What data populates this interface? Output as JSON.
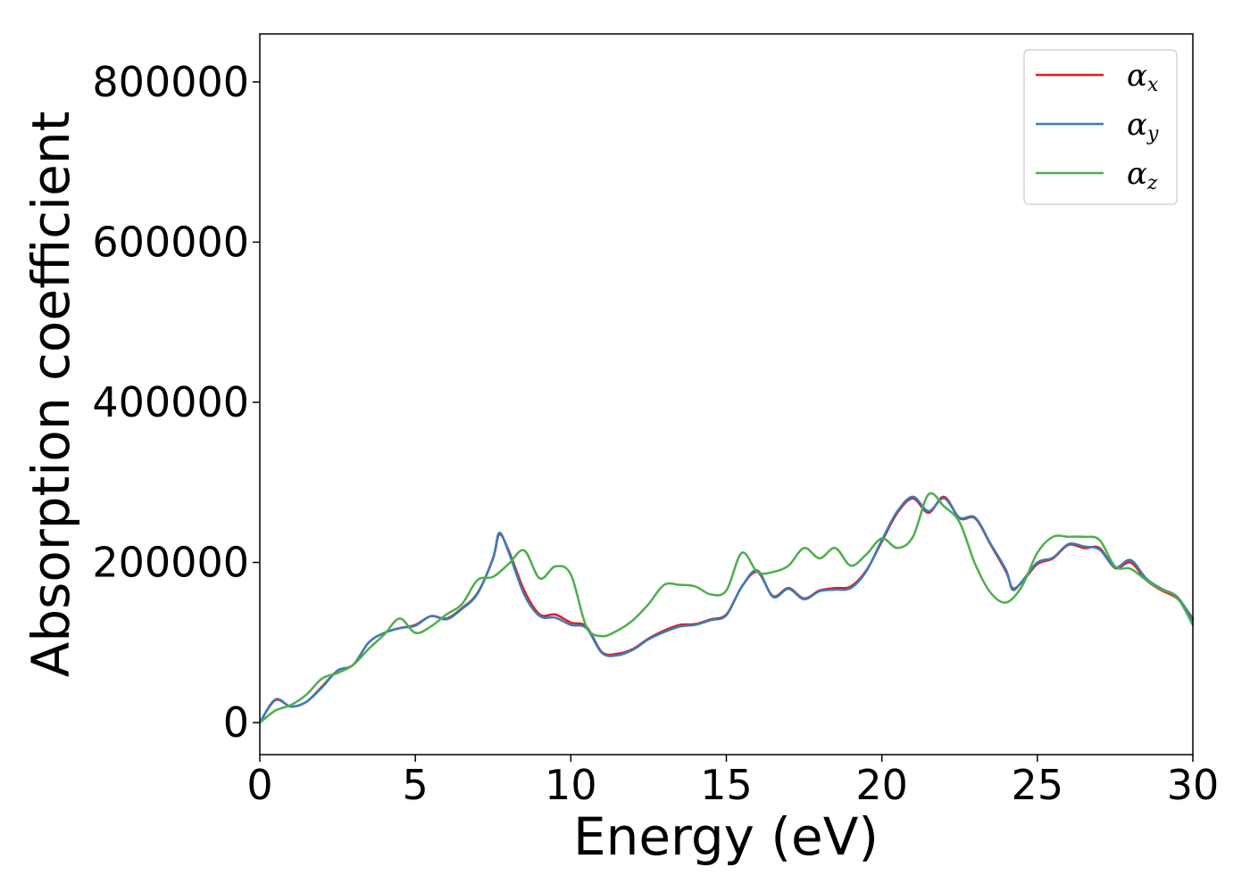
{
  "chart_data": {
    "type": "line",
    "title": "",
    "xlabel": "Energy (eV)",
    "ylabel": "Absorption coefficient",
    "xlim": [
      0,
      30
    ],
    "ylim": [
      -40000,
      860000
    ],
    "xticks": [
      0,
      5,
      10,
      15,
      20,
      25,
      30
    ],
    "yticks": [
      0,
      200000,
      400000,
      600000,
      800000
    ],
    "xtick_labels": [
      "0",
      "5",
      "10",
      "15",
      "20",
      "25",
      "30"
    ],
    "ytick_labels": [
      "0",
      "200000",
      "400000",
      "600000",
      "800000"
    ],
    "grid": false,
    "legend_position": "top-right",
    "series": [
      {
        "name": "αx",
        "legend_base": "α",
        "legend_sub": "x",
        "color": "#e41a1c",
        "x": [
          0,
          0.5,
          1,
          1.5,
          2,
          2.5,
          3,
          3.5,
          4,
          4.5,
          5,
          5.5,
          6,
          6.5,
          7,
          7.5,
          7.7,
          8,
          8.5,
          9,
          9.5,
          10,
          10.5,
          11,
          11.5,
          12,
          12.5,
          13,
          13.5,
          14,
          14.5,
          15,
          15.5,
          16,
          16.5,
          17,
          17.5,
          18,
          18.5,
          19,
          19.5,
          20,
          20.5,
          21,
          21.5,
          22,
          22.5,
          23,
          23.5,
          24,
          24.2,
          24.5,
          25,
          25.5,
          26,
          26.5,
          27,
          27.5,
          28,
          28.5,
          29,
          29.5,
          30
        ],
        "values": [
          0,
          28000,
          20000,
          26000,
          45000,
          65000,
          72000,
          100000,
          112000,
          118000,
          122000,
          133000,
          130000,
          143000,
          162000,
          205000,
          235000,
          215000,
          165000,
          135000,
          135000,
          125000,
          120000,
          88000,
          86000,
          92000,
          105000,
          115000,
          122000,
          123000,
          129000,
          135000,
          170000,
          188000,
          158000,
          168000,
          155000,
          165000,
          168000,
          170000,
          190000,
          226000,
          262000,
          280000,
          262000,
          282000,
          255000,
          255000,
          222000,
          188000,
          168000,
          175000,
          198000,
          205000,
          222000,
          218000,
          218000,
          193000,
          200000,
          178000,
          165000,
          155000,
          130000
        ]
      },
      {
        "name": "αy",
        "legend_base": "α",
        "legend_sub": "y",
        "color": "#377eb8",
        "x": [
          0,
          0.5,
          1,
          1.5,
          2,
          2.5,
          3,
          3.5,
          4,
          4.5,
          5,
          5.5,
          6,
          6.5,
          7,
          7.5,
          7.7,
          8,
          8.5,
          9,
          9.5,
          10,
          10.5,
          11,
          11.5,
          12,
          12.5,
          13,
          13.5,
          14,
          14.5,
          15,
          15.5,
          16,
          16.5,
          17,
          17.5,
          18,
          18.5,
          19,
          19.5,
          20,
          20.5,
          21,
          21.5,
          22,
          22.5,
          23,
          23.5,
          24,
          24.2,
          24.5,
          25,
          25.5,
          26,
          26.5,
          27,
          27.5,
          28,
          28.5,
          29,
          29.5,
          30
        ],
        "values": [
          0,
          29000,
          20000,
          26000,
          44000,
          65000,
          72000,
          100000,
          112000,
          118000,
          121000,
          133000,
          129000,
          142000,
          161000,
          206000,
          237000,
          213000,
          160000,
          133000,
          131000,
          122000,
          118000,
          87000,
          84000,
          91000,
          104000,
          113000,
          120000,
          122000,
          128000,
          134000,
          170000,
          190000,
          157000,
          167000,
          154000,
          164000,
          166000,
          168000,
          189000,
          228000,
          264000,
          282000,
          264000,
          280000,
          256000,
          256000,
          223000,
          190000,
          166000,
          176000,
          200000,
          206000,
          223000,
          220000,
          216000,
          194000,
          203000,
          180000,
          167000,
          157000,
          128000
        ]
      },
      {
        "name": "αz",
        "legend_base": "α",
        "legend_sub": "z",
        "color": "#4daf4a",
        "x": [
          0,
          0.5,
          1,
          1.5,
          2,
          2.5,
          3,
          3.5,
          4,
          4.5,
          5,
          5.5,
          6,
          6.5,
          7,
          7.5,
          8,
          8.5,
          9,
          9.5,
          10,
          10.5,
          11,
          11.5,
          12,
          12.5,
          13,
          13.5,
          14,
          14.5,
          15,
          15.5,
          16,
          16.5,
          17,
          17.5,
          18,
          18.5,
          19,
          19.5,
          20,
          20.5,
          21,
          21.5,
          22,
          22.5,
          23,
          23.5,
          24,
          24.5,
          25,
          25.5,
          26,
          26.5,
          27,
          27.5,
          28,
          28.5,
          29,
          29.5,
          30
        ],
        "values": [
          0,
          15000,
          22000,
          35000,
          55000,
          62000,
          72000,
          92000,
          110000,
          130000,
          112000,
          120000,
          135000,
          148000,
          178000,
          182000,
          198000,
          215000,
          180000,
          195000,
          185000,
          120000,
          108000,
          115000,
          128000,
          148000,
          172000,
          172000,
          170000,
          160000,
          165000,
          212000,
          188000,
          188000,
          196000,
          218000,
          205000,
          218000,
          196000,
          210000,
          230000,
          218000,
          232000,
          285000,
          270000,
          250000,
          198000,
          162000,
          150000,
          170000,
          212000,
          232000,
          232000,
          232000,
          228000,
          195000,
          192000,
          178000,
          166000,
          156000,
          122000
        ]
      }
    ]
  }
}
